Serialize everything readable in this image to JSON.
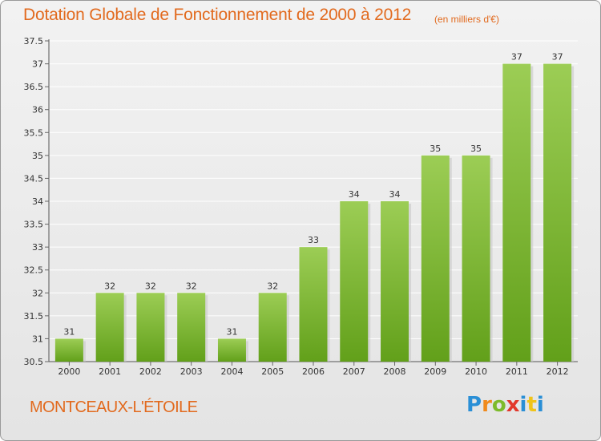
{
  "title": "Dotation Globale de Fonctionnement de 2000 à 2012",
  "subtitle": "(en milliers d'€)",
  "commune": "MONTCEAUX-L'ÉTOILE",
  "logo": {
    "letters": [
      "P",
      "r",
      "o",
      "x",
      "i",
      "t",
      "i"
    ],
    "colors": [
      "#2a8fd6",
      "#f08a1c",
      "#7dbb2b",
      "#e2372b",
      "#2a8fd6",
      "#f0c419",
      "#2a8fd6"
    ]
  },
  "colors": {
    "bar_light": "#9ccd55",
    "bar_dark": "#62a01a",
    "title": "#e26a1e",
    "grid": "#ffffff"
  },
  "chart_data": {
    "type": "bar",
    "categories": [
      "2000",
      "2001",
      "2002",
      "2003",
      "2004",
      "2005",
      "2006",
      "2007",
      "2008",
      "2009",
      "2010",
      "2011",
      "2012"
    ],
    "values": [
      31,
      32,
      32,
      32,
      31,
      32,
      33,
      34,
      34,
      35,
      35,
      37,
      37
    ],
    "value_labels": [
      "31",
      "32",
      "32",
      "32",
      "31",
      "32",
      "33",
      "34",
      "34",
      "35",
      "35",
      "37",
      "37"
    ],
    "yticks": [
      "30.5",
      "31",
      "31.5",
      "32",
      "32.5",
      "33",
      "33.5",
      "34",
      "34.5",
      "35",
      "35.5",
      "36",
      "36.5",
      "37",
      "37.5"
    ],
    "ylim": [
      30.5,
      37.5
    ],
    "grid": true
  }
}
